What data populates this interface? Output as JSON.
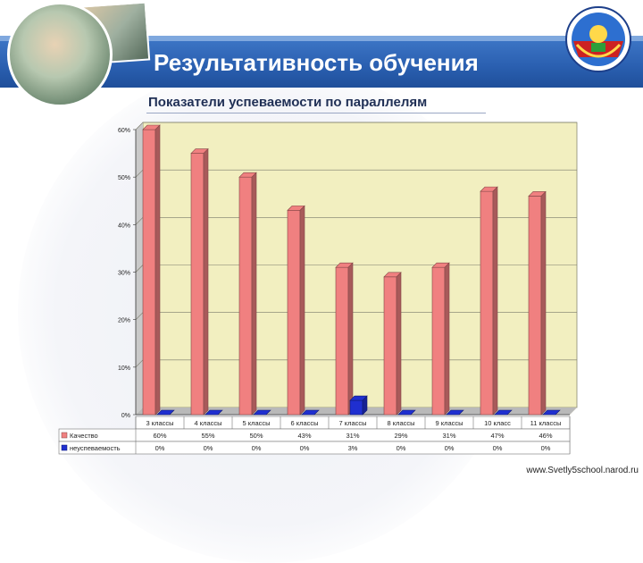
{
  "header": {
    "title": "Результативность обучения",
    "subtitle": "Показатели успеваемости по параллелям",
    "website": "www.Svetly5school.narod.ru",
    "band_color": "#2a5fb0"
  },
  "chart_data": {
    "type": "bar",
    "categories": [
      "3 классы",
      "4 классы",
      "5 классы",
      "6 классы",
      "7 классы",
      "8 классы",
      "9 классы",
      "10 класс",
      "11 классы"
    ],
    "series": [
      {
        "name": "Качество",
        "values": [
          60,
          55,
          50,
          43,
          31,
          29,
          31,
          47,
          46
        ],
        "labels": [
          "60%",
          "55%",
          "50%",
          "43%",
          "31%",
          "29%",
          "31%",
          "47%",
          "46%"
        ],
        "color": "#f08080"
      },
      {
        "name": "неуспеваемость",
        "values": [
          0,
          0,
          0,
          0,
          3,
          0,
          0,
          0,
          0
        ],
        "labels": [
          "0%",
          "0%",
          "0%",
          "0%",
          "3%",
          "0%",
          "0%",
          "0%",
          "0%"
        ],
        "color": "#1f2fd0"
      }
    ],
    "yticks": [
      "0%",
      "10%",
      "20%",
      "30%",
      "40%",
      "50%",
      "60%"
    ],
    "ylim": [
      0,
      60
    ],
    "grid": true,
    "plot_background": "#f2efc0",
    "legend": "data-table"
  }
}
